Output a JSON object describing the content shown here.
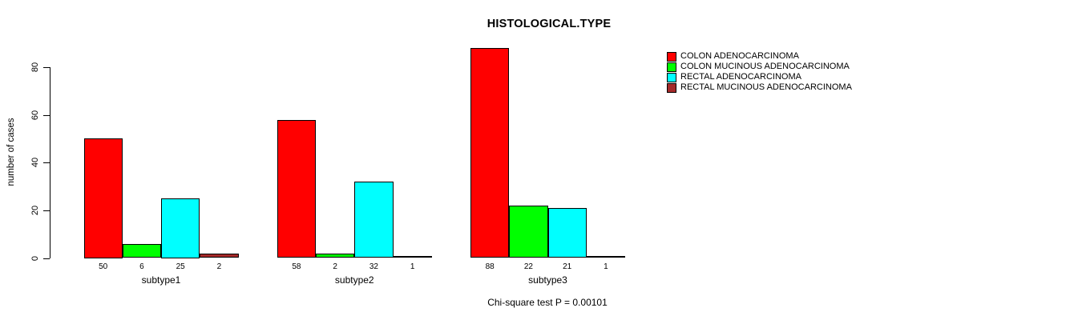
{
  "chart_data": {
    "type": "bar",
    "title": "HISTOLOGICAL.TYPE",
    "xlabel": "",
    "ylabel": "number of cases",
    "ylim": [
      0,
      80
    ],
    "yticks": [
      0,
      20,
      40,
      60,
      80
    ],
    "grid": false,
    "legend_position": "top-right",
    "categories": [
      "subtype1",
      "subtype2",
      "subtype3"
    ],
    "series": [
      {
        "name": "COLON ADENOCARCINOMA",
        "color": "#FF0000",
        "values": [
          50,
          58,
          88
        ]
      },
      {
        "name": "COLON MUCINOUS ADENOCARCINOMA",
        "color": "#00FF00",
        "values": [
          6,
          2,
          22
        ]
      },
      {
        "name": "RECTAL ADENOCARCINOMA",
        "color": "#00FFFF",
        "values": [
          25,
          32,
          21
        ]
      },
      {
        "name": "RECTAL MUCINOUS ADENOCARCINOMA",
        "color": "#A52A2A",
        "values": [
          2,
          1,
          1
        ]
      }
    ],
    "bar_value_labels_shown": true,
    "annotation": "Chi-square test P = 0.00101"
  }
}
